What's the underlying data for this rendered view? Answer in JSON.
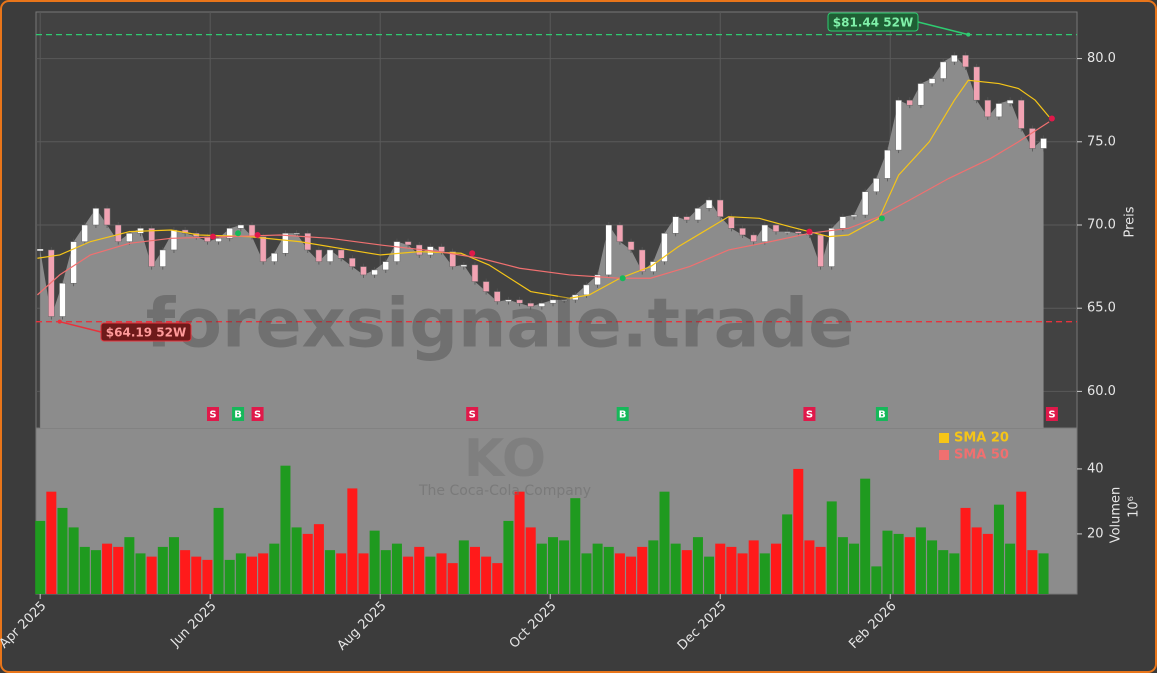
{
  "chart_data": {
    "type": "candlestick",
    "watermark": "forexsignale.trade",
    "ticker": "KO",
    "company": "The Coca-Cola Company",
    "ylabel": "Preis",
    "x": [
      0,
      4,
      8,
      12,
      16,
      20,
      24,
      28,
      32,
      36,
      40,
      44,
      48,
      52,
      56,
      60,
      64,
      68,
      72,
      76,
      80,
      84,
      88,
      92,
      96,
      100,
      104,
      108,
      112,
      116,
      120,
      124,
      128,
      132,
      136,
      140,
      144,
      148,
      152,
      156,
      160,
      164,
      168,
      172,
      176,
      180,
      184,
      188,
      192,
      196,
      200,
      204,
      208,
      212,
      216,
      220,
      224,
      228,
      232,
      236,
      240,
      244,
      248,
      252,
      256,
      260,
      264,
      268,
      272,
      276,
      280,
      284,
      288,
      292,
      296,
      300,
      304,
      308,
      312,
      316,
      320,
      324,
      328,
      332,
      336,
      340,
      344,
      348,
      352,
      356,
      360
    ],
    "xlim": [
      -1.5,
      372
    ],
    "xticks": [
      {
        "value": 0,
        "label": "Apr 2025"
      },
      {
        "value": 61,
        "label": "Jun 2025"
      },
      {
        "value": 122,
        "label": "Aug 2025"
      },
      {
        "value": 183,
        "label": "Oct 2025"
      },
      {
        "value": 244,
        "label": "Dec 2025"
      },
      {
        "value": 305,
        "label": "Feb 2026"
      }
    ],
    "close": [
      68.5,
      64.5,
      66.5,
      69,
      70,
      71,
      70,
      69,
      69.5,
      69.8,
      67.5,
      68.5,
      69.7,
      69.5,
      69.3,
      69,
      69.2,
      69.8,
      70,
      69.3,
      67.8,
      68.3,
      69.5,
      69.5,
      68.5,
      67.8,
      68.5,
      68,
      67.5,
      67,
      67.3,
      67.8,
      69,
      68.8,
      68.2,
      68.7,
      68.4,
      67.5,
      67.6,
      66.6,
      66,
      65.4,
      65.5,
      65.3,
      65.1,
      65.3,
      65.5,
      65.5,
      65.8,
      66.4,
      67,
      70,
      69,
      68.5,
      67.2,
      67.8,
      69.5,
      70.5,
      70.3,
      71,
      71.5,
      70.5,
      69.8,
      69.4,
      69,
      70,
      69.6,
      69.6,
      69.5,
      69.4,
      67.5,
      69.8,
      70.5,
      70.6,
      72,
      72.8,
      74.5,
      77.5,
      77.2,
      78.5,
      78.8,
      79.8,
      80.2,
      79.5,
      77.5,
      76.5,
      77.3,
      77.5,
      75.8,
      74.6,
      75.2
    ],
    "ylim": [
      57.8,
      82.8
    ],
    "yticks": [
      {
        "value": 60,
        "label": "60.0"
      },
      {
        "value": 65,
        "label": "65.0"
      },
      {
        "value": 70,
        "label": "70.0"
      },
      {
        "value": 75,
        "label": "75.0"
      },
      {
        "value": 80,
        "label": "80.0"
      }
    ],
    "up_color": "#ffffff",
    "down_color": "#f2a3b3",
    "area_color": "#8c8c8c",
    "grid": true,
    "sma": [
      {
        "name": "SMA 20",
        "color": "#f5c518",
        "x": [
          -1,
          7,
          18,
          32,
          47,
          57,
          75,
          93,
          111,
          122,
          136,
          151,
          161,
          176,
          190,
          197,
          208,
          219,
          229,
          237,
          247,
          258,
          269,
          276,
          283,
          290,
          301,
          308,
          319,
          328,
          333,
          344,
          351,
          357,
          362
        ],
        "values": [
          68,
          68.2,
          69,
          69.6,
          69.7,
          69.4,
          69.3,
          69,
          68.5,
          68.2,
          68.4,
          68.3,
          67.6,
          66,
          65.6,
          65.8,
          66.8,
          67.5,
          68.7,
          69.5,
          70.5,
          70.4,
          69.9,
          69.6,
          69.3,
          69.4,
          70.4,
          73,
          75,
          77.5,
          78.7,
          78.5,
          78.2,
          77.5,
          76.5
        ]
      },
      {
        "name": "SMA 50",
        "color": "#f07070",
        "x": [
          -1,
          7,
          18,
          32,
          47,
          68,
          86,
          104,
          122,
          143,
          158,
          172,
          190,
          208,
          219,
          233,
          247,
          262,
          276,
          290,
          301,
          312,
          326,
          341,
          351,
          362
        ],
        "values": [
          65.8,
          67,
          68.2,
          68.9,
          69.2,
          69.3,
          69.4,
          69.2,
          68.8,
          68.4,
          68,
          67.4,
          67,
          66.8,
          66.8,
          67.5,
          68.5,
          69,
          69.5,
          69.8,
          70.5,
          71.5,
          72.8,
          74,
          75,
          76.2
        ]
      }
    ],
    "high_52w": {
      "value": 81.44,
      "x": 333,
      "label": "$81.44 52W",
      "color": "#2ecc71"
    },
    "low_52w": {
      "value": 64.19,
      "x": 7,
      "label": "$64.19 52W",
      "color": "#e8323c"
    },
    "signals": [
      {
        "x": 62,
        "label": "S",
        "price": 69.3,
        "color": "#e0194a"
      },
      {
        "x": 71,
        "label": "B",
        "price": 69.5,
        "color": "#16b85a"
      },
      {
        "x": 78,
        "label": "S",
        "price": 69.4,
        "color": "#e0194a"
      },
      {
        "x": 155,
        "label": "S",
        "price": 68.3,
        "color": "#e0194a"
      },
      {
        "x": 209,
        "label": "B",
        "price": 66.8,
        "color": "#16b85a"
      },
      {
        "x": 276,
        "label": "S",
        "price": 69.6,
        "color": "#e0194a"
      },
      {
        "x": 302,
        "label": "B",
        "price": 70.4,
        "color": "#16b85a"
      },
      {
        "x": 363,
        "label": "S",
        "price": 76.4,
        "color": "#e0194a"
      }
    ],
    "volume": {
      "label": "Volumen",
      "unit": "10⁶",
      "up_color": "#1f9a1f",
      "down_color": "#ff1a1a",
      "ylim": [
        1.5,
        52.6
      ],
      "yticks": [
        20,
        40
      ],
      "values": [
        24,
        33,
        28,
        22,
        16,
        15,
        17,
        16,
        19,
        14,
        13,
        16,
        19,
        15,
        13,
        12,
        28,
        12,
        14,
        13,
        14,
        17,
        41,
        22,
        20,
        23,
        15,
        14,
        34,
        14,
        21,
        15,
        17,
        13,
        16,
        13,
        14,
        11,
        18,
        16,
        13,
        11,
        24,
        33,
        22,
        17,
        19,
        18,
        31,
        14,
        17,
        16,
        14,
        13,
        16,
        18,
        33,
        17,
        15,
        19,
        13,
        17,
        16,
        14,
        18,
        14,
        17,
        26,
        40,
        18,
        16,
        30,
        19,
        17,
        37,
        10,
        21,
        20,
        19,
        22,
        18,
        15,
        14,
        28,
        22,
        20,
        29,
        17,
        33,
        15,
        14
      ]
    }
  }
}
